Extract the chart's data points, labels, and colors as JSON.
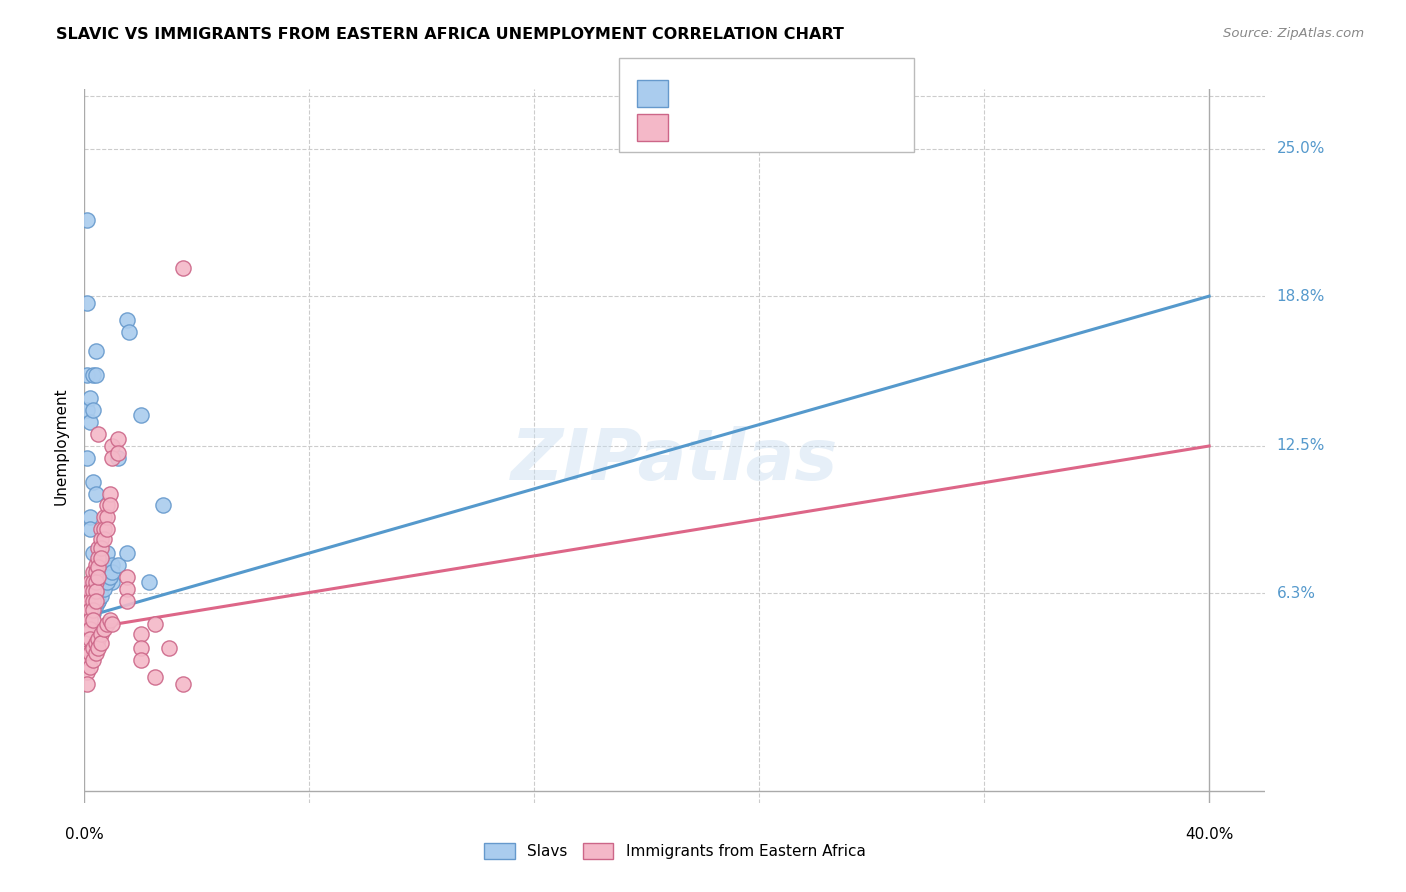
{
  "title": "SLAVIC VS IMMIGRANTS FROM EASTERN AFRICA UNEMPLOYMENT CORRELATION CHART",
  "source": "Source: ZipAtlas.com",
  "ylabel": "Unemployment",
  "ytick_labels": [
    "6.3%",
    "12.5%",
    "18.8%",
    "25.0%"
  ],
  "ytick_values": [
    0.063,
    0.125,
    0.188,
    0.25
  ],
  "xtick_labels": [
    "0.0%",
    "40.0%"
  ],
  "xtick_positions": [
    0.0,
    0.4
  ],
  "xlim": [
    0.0,
    0.42
  ],
  "ylim": [
    -0.025,
    0.275
  ],
  "blue_x": [
    0.001,
    0.001,
    0.001,
    0.001,
    0.001,
    0.001,
    0.002,
    0.002,
    0.002,
    0.002,
    0.002,
    0.003,
    0.003,
    0.003,
    0.003,
    0.004,
    0.004,
    0.004,
    0.005,
    0.005,
    0.006,
    0.006,
    0.007,
    0.007,
    0.008,
    0.008,
    0.009,
    0.01,
    0.01,
    0.012,
    0.015,
    0.016,
    0.02,
    0.023,
    0.028,
    0.001,
    0.001,
    0.002,
    0.002,
    0.003,
    0.004,
    0.005,
    0.006,
    0.007,
    0.008,
    0.009,
    0.01,
    0.012,
    0.015
  ],
  "blue_y": [
    0.22,
    0.185,
    0.155,
    0.14,
    0.12,
    0.065,
    0.145,
    0.135,
    0.095,
    0.09,
    0.065,
    0.155,
    0.14,
    0.11,
    0.08,
    0.165,
    0.155,
    0.105,
    0.065,
    0.06,
    0.075,
    0.065,
    0.075,
    0.07,
    0.08,
    0.07,
    0.07,
    0.075,
    0.068,
    0.12,
    0.178,
    0.173,
    0.138,
    0.068,
    0.1,
    0.06,
    0.055,
    0.058,
    0.052,
    0.055,
    0.058,
    0.06,
    0.062,
    0.065,
    0.068,
    0.07,
    0.072,
    0.075,
    0.08
  ],
  "pink_x": [
    0.001,
    0.001,
    0.001,
    0.001,
    0.001,
    0.001,
    0.001,
    0.001,
    0.002,
    0.002,
    0.002,
    0.002,
    0.002,
    0.002,
    0.002,
    0.003,
    0.003,
    0.003,
    0.003,
    0.003,
    0.003,
    0.004,
    0.004,
    0.004,
    0.004,
    0.004,
    0.005,
    0.005,
    0.005,
    0.005,
    0.005,
    0.006,
    0.006,
    0.006,
    0.006,
    0.007,
    0.007,
    0.007,
    0.008,
    0.008,
    0.008,
    0.009,
    0.009,
    0.01,
    0.01,
    0.012,
    0.012,
    0.015,
    0.015,
    0.02,
    0.02,
    0.025,
    0.025,
    0.03,
    0.035,
    0.035,
    0.001,
    0.001,
    0.002,
    0.002,
    0.003,
    0.003,
    0.004,
    0.004,
    0.005,
    0.005,
    0.006,
    0.006,
    0.007,
    0.008,
    0.009,
    0.01,
    0.015,
    0.02
  ],
  "pink_y": [
    0.06,
    0.057,
    0.054,
    0.05,
    0.046,
    0.042,
    0.038,
    0.034,
    0.068,
    0.064,
    0.06,
    0.056,
    0.052,
    0.048,
    0.044,
    0.072,
    0.068,
    0.064,
    0.06,
    0.056,
    0.052,
    0.075,
    0.072,
    0.068,
    0.064,
    0.06,
    0.13,
    0.082,
    0.078,
    0.074,
    0.07,
    0.09,
    0.086,
    0.082,
    0.078,
    0.095,
    0.09,
    0.086,
    0.1,
    0.095,
    0.09,
    0.105,
    0.1,
    0.125,
    0.12,
    0.128,
    0.122,
    0.07,
    0.065,
    0.046,
    0.04,
    0.05,
    0.028,
    0.04,
    0.2,
    0.025,
    0.03,
    0.025,
    0.038,
    0.032,
    0.04,
    0.035,
    0.042,
    0.038,
    0.044,
    0.04,
    0.046,
    0.042,
    0.048,
    0.05,
    0.052,
    0.05,
    0.06,
    0.035
  ],
  "blue_line_x": [
    0.0,
    0.4
  ],
  "blue_line_y": [
    0.053,
    0.188
  ],
  "pink_line_x": [
    0.0,
    0.4
  ],
  "pink_line_y": [
    0.048,
    0.125
  ],
  "blue_color": "#aaccee",
  "pink_color": "#f4b8c8",
  "blue_edge_color": "#6699cc",
  "pink_edge_color": "#cc6688",
  "blue_line_color": "#5599cc",
  "pink_line_color": "#dd6688",
  "watermark": "ZIPatlas",
  "background_color": "#ffffff",
  "grid_color": "#cccccc"
}
